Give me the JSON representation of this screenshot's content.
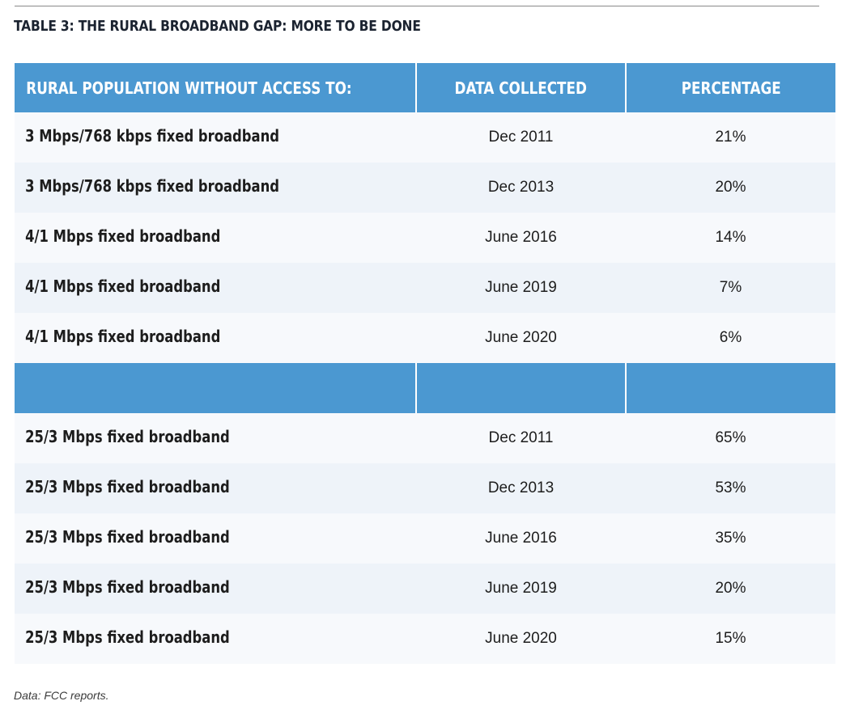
{
  "title": "TABLE 3: THE RURAL BROADBAND GAP: MORE TO BE DONE",
  "headers": {
    "col1": "RURAL POPULATION WITHOUT ACCESS TO:",
    "col2": "DATA COLLECTED",
    "col3": "PERCENTAGE"
  },
  "colors": {
    "header_blue": "#4b98d1",
    "row_light": "#f7f9fc",
    "row_tint": "#eef3f9"
  },
  "rows_group1": [
    {
      "category": "3 Mbps/768 kbps fixed broadband",
      "date": "Dec 2011",
      "percentage": "21%"
    },
    {
      "category": "3 Mbps/768 kbps fixed broadband",
      "date": "Dec 2013",
      "percentage": "20%"
    },
    {
      "category": "4/1 Mbps fixed broadband",
      "date": "June 2016",
      "percentage": "14%"
    },
    {
      "category": "4/1 Mbps fixed broadband",
      "date": "June 2019",
      "percentage": "7%"
    },
    {
      "category": "4/1 Mbps fixed broadband",
      "date": "June 2020",
      "percentage": "6%"
    }
  ],
  "rows_group2": [
    {
      "category": "25/3 Mbps fixed broadband",
      "date": "Dec 2011",
      "percentage": "65%"
    },
    {
      "category": "25/3 Mbps fixed broadband",
      "date": "Dec 2013",
      "percentage": "53%"
    },
    {
      "category": "25/3 Mbps fixed broadband",
      "date": "June 2016",
      "percentage": "35%"
    },
    {
      "category": "25/3 Mbps fixed broadband",
      "date": "June 2019",
      "percentage": "20%"
    },
    {
      "category": "25/3 Mbps fixed broadband",
      "date": "June 2020",
      "percentage": "15%"
    }
  ],
  "footnote": "Data: FCC reports."
}
